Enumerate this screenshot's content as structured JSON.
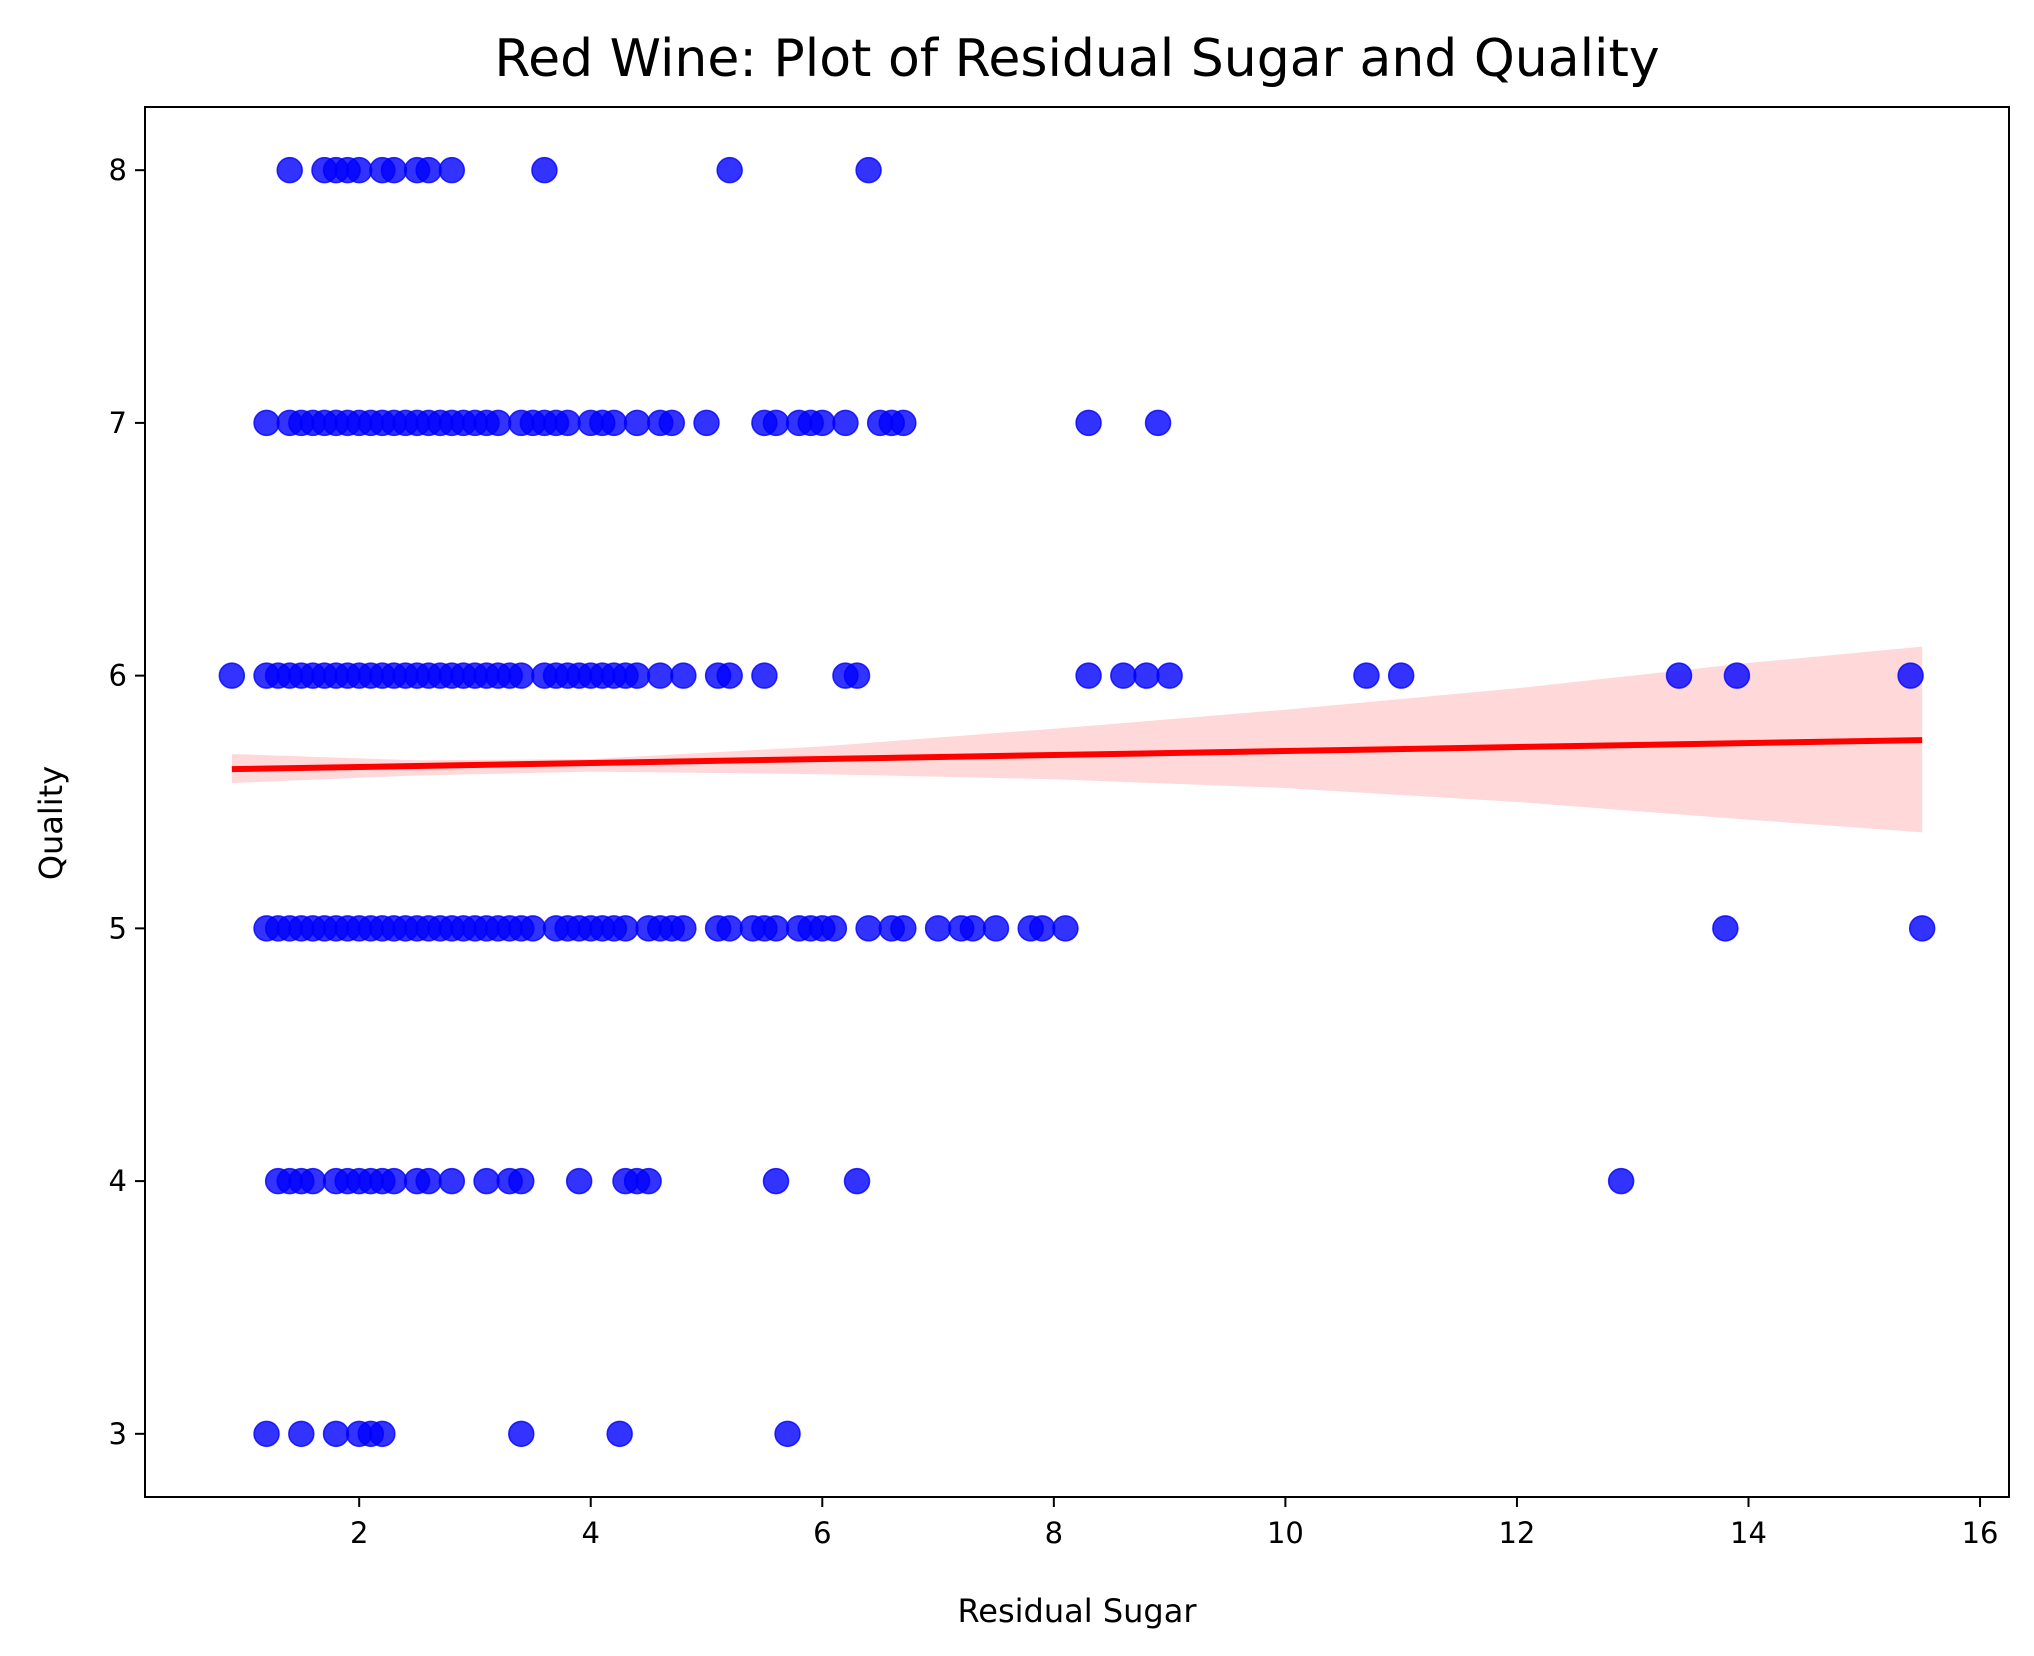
{
  "chart_data": {
    "type": "scatter",
    "title": "Red Wine: Plot of Residual Sugar and Quality",
    "xlabel": "Residual Sugar",
    "ylabel": "Quality",
    "xlim": [
      0.15,
      16.25
    ],
    "ylim": [
      2.75,
      8.25
    ],
    "x_ticks": [
      2,
      4,
      6,
      8,
      10,
      12,
      14,
      16
    ],
    "y_ticks": [
      3,
      4,
      5,
      6,
      7,
      8
    ],
    "grid": false,
    "legend": "none",
    "colors": {
      "points": "#0000ff",
      "regression_line": "#ff0000",
      "confidence_band": "#ffcccc"
    },
    "series": [
      {
        "type": "scatter",
        "points": [
          [
            1.2,
            3
          ],
          [
            1.5,
            3
          ],
          [
            1.8,
            3
          ],
          [
            2.0,
            3
          ],
          [
            2.1,
            3
          ],
          [
            2.2,
            3
          ],
          [
            3.4,
            3
          ],
          [
            4.25,
            3
          ],
          [
            5.7,
            3
          ],
          [
            1.3,
            4
          ],
          [
            1.4,
            4
          ],
          [
            1.5,
            4
          ],
          [
            1.6,
            4
          ],
          [
            1.8,
            4
          ],
          [
            1.9,
            4
          ],
          [
            2.0,
            4
          ],
          [
            2.1,
            4
          ],
          [
            2.2,
            4
          ],
          [
            2.3,
            4
          ],
          [
            2.5,
            4
          ],
          [
            2.6,
            4
          ],
          [
            2.8,
            4
          ],
          [
            3.1,
            4
          ],
          [
            3.3,
            4
          ],
          [
            3.4,
            4
          ],
          [
            3.9,
            4
          ],
          [
            4.3,
            4
          ],
          [
            4.4,
            4
          ],
          [
            4.5,
            4
          ],
          [
            5.6,
            4
          ],
          [
            6.3,
            4
          ],
          [
            12.9,
            4
          ],
          [
            1.2,
            5
          ],
          [
            1.3,
            5
          ],
          [
            1.4,
            5
          ],
          [
            1.5,
            5
          ],
          [
            1.6,
            5
          ],
          [
            1.7,
            5
          ],
          [
            1.8,
            5
          ],
          [
            1.9,
            5
          ],
          [
            2.0,
            5
          ],
          [
            2.1,
            5
          ],
          [
            2.2,
            5
          ],
          [
            2.3,
            5
          ],
          [
            2.4,
            5
          ],
          [
            2.5,
            5
          ],
          [
            2.6,
            5
          ],
          [
            2.7,
            5
          ],
          [
            2.8,
            5
          ],
          [
            2.9,
            5
          ],
          [
            3.0,
            5
          ],
          [
            3.1,
            5
          ],
          [
            3.2,
            5
          ],
          [
            3.3,
            5
          ],
          [
            3.4,
            5
          ],
          [
            3.5,
            5
          ],
          [
            3.7,
            5
          ],
          [
            3.8,
            5
          ],
          [
            3.9,
            5
          ],
          [
            4.0,
            5
          ],
          [
            4.1,
            5
          ],
          [
            4.2,
            5
          ],
          [
            4.3,
            5
          ],
          [
            4.5,
            5
          ],
          [
            4.6,
            5
          ],
          [
            4.7,
            5
          ],
          [
            4.8,
            5
          ],
          [
            5.1,
            5
          ],
          [
            5.2,
            5
          ],
          [
            5.4,
            5
          ],
          [
            5.5,
            5
          ],
          [
            5.6,
            5
          ],
          [
            5.8,
            5
          ],
          [
            5.9,
            5
          ],
          [
            6.0,
            5
          ],
          [
            6.1,
            5
          ],
          [
            6.4,
            5
          ],
          [
            6.6,
            5
          ],
          [
            6.7,
            5
          ],
          [
            7.0,
            5
          ],
          [
            7.2,
            5
          ],
          [
            7.3,
            5
          ],
          [
            7.5,
            5
          ],
          [
            7.8,
            5
          ],
          [
            7.9,
            5
          ],
          [
            8.1,
            5
          ],
          [
            13.8,
            5
          ],
          [
            15.5,
            5
          ],
          [
            0.9,
            6
          ],
          [
            1.2,
            6
          ],
          [
            1.3,
            6
          ],
          [
            1.4,
            6
          ],
          [
            1.5,
            6
          ],
          [
            1.6,
            6
          ],
          [
            1.7,
            6
          ],
          [
            1.8,
            6
          ],
          [
            1.9,
            6
          ],
          [
            2.0,
            6
          ],
          [
            2.1,
            6
          ],
          [
            2.2,
            6
          ],
          [
            2.3,
            6
          ],
          [
            2.4,
            6
          ],
          [
            2.5,
            6
          ],
          [
            2.6,
            6
          ],
          [
            2.7,
            6
          ],
          [
            2.8,
            6
          ],
          [
            2.9,
            6
          ],
          [
            3.0,
            6
          ],
          [
            3.1,
            6
          ],
          [
            3.2,
            6
          ],
          [
            3.3,
            6
          ],
          [
            3.4,
            6
          ],
          [
            3.6,
            6
          ],
          [
            3.7,
            6
          ],
          [
            3.8,
            6
          ],
          [
            3.9,
            6
          ],
          [
            4.0,
            6
          ],
          [
            4.1,
            6
          ],
          [
            4.2,
            6
          ],
          [
            4.3,
            6
          ],
          [
            4.4,
            6
          ],
          [
            4.6,
            6
          ],
          [
            4.8,
            6
          ],
          [
            5.1,
            6
          ],
          [
            5.2,
            6
          ],
          [
            5.5,
            6
          ],
          [
            6.2,
            6
          ],
          [
            6.3,
            6
          ],
          [
            8.3,
            6
          ],
          [
            8.6,
            6
          ],
          [
            8.8,
            6
          ],
          [
            9.0,
            6
          ],
          [
            10.7,
            6
          ],
          [
            11.0,
            6
          ],
          [
            13.4,
            6
          ],
          [
            13.9,
            6
          ],
          [
            15.4,
            6
          ],
          [
            1.2,
            7
          ],
          [
            1.4,
            7
          ],
          [
            1.5,
            7
          ],
          [
            1.6,
            7
          ],
          [
            1.7,
            7
          ],
          [
            1.8,
            7
          ],
          [
            1.9,
            7
          ],
          [
            2.0,
            7
          ],
          [
            2.1,
            7
          ],
          [
            2.2,
            7
          ],
          [
            2.3,
            7
          ],
          [
            2.4,
            7
          ],
          [
            2.5,
            7
          ],
          [
            2.6,
            7
          ],
          [
            2.7,
            7
          ],
          [
            2.8,
            7
          ],
          [
            2.9,
            7
          ],
          [
            3.0,
            7
          ],
          [
            3.1,
            7
          ],
          [
            3.2,
            7
          ],
          [
            3.4,
            7
          ],
          [
            3.5,
            7
          ],
          [
            3.6,
            7
          ],
          [
            3.7,
            7
          ],
          [
            3.8,
            7
          ],
          [
            4.0,
            7
          ],
          [
            4.1,
            7
          ],
          [
            4.2,
            7
          ],
          [
            4.4,
            7
          ],
          [
            4.6,
            7
          ],
          [
            4.7,
            7
          ],
          [
            5.0,
            7
          ],
          [
            5.5,
            7
          ],
          [
            5.6,
            7
          ],
          [
            5.8,
            7
          ],
          [
            5.9,
            7
          ],
          [
            6.0,
            7
          ],
          [
            6.2,
            7
          ],
          [
            6.5,
            7
          ],
          [
            6.6,
            7
          ],
          [
            6.7,
            7
          ],
          [
            8.3,
            7
          ],
          [
            8.9,
            7
          ],
          [
            1.4,
            8
          ],
          [
            1.7,
            8
          ],
          [
            1.8,
            8
          ],
          [
            1.9,
            8
          ],
          [
            2.0,
            8
          ],
          [
            2.2,
            8
          ],
          [
            2.3,
            8
          ],
          [
            2.5,
            8
          ],
          [
            2.6,
            8
          ],
          [
            2.8,
            8
          ],
          [
            3.6,
            8
          ],
          [
            5.2,
            8
          ],
          [
            6.4,
            8
          ]
        ]
      },
      {
        "type": "regression_line",
        "x": [
          0.9,
          15.5
        ],
        "y": [
          5.63,
          5.745
        ]
      },
      {
        "type": "confidence_band",
        "x": [
          0.9,
          2.5,
          4.0,
          6.0,
          8.0,
          10.0,
          12.0,
          14.0,
          15.5
        ],
        "y_lower": [
          5.575,
          5.605,
          5.62,
          5.61,
          5.59,
          5.555,
          5.5,
          5.43,
          5.38
        ],
        "y_upper": [
          5.69,
          5.665,
          5.67,
          5.72,
          5.79,
          5.865,
          5.95,
          6.05,
          6.115
        ]
      }
    ]
  }
}
